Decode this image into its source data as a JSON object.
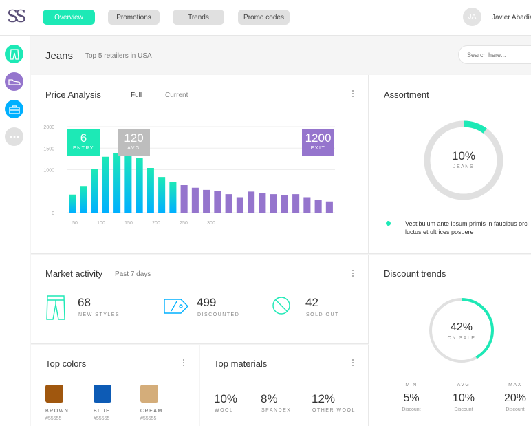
{
  "app": {
    "logo": "SS"
  },
  "nav": {
    "tabs": [
      "Overview",
      "Promotions",
      "Trends",
      "Promo codes"
    ]
  },
  "user": {
    "initials": "JA",
    "name": "Javier Abadía"
  },
  "sidebar": {
    "icons": [
      "pants-icon",
      "shoe-icon",
      "bag-icon",
      "more-icon"
    ]
  },
  "header": {
    "title": "Jeans",
    "subtitle": "Top 5 retailers in USA",
    "search_placeholder": "Search here..."
  },
  "price_analysis": {
    "title": "Price Analysis",
    "tabs": [
      "Full",
      "Current"
    ],
    "entry": {
      "value": "6",
      "label": "ENTRY"
    },
    "avg": {
      "value": "120",
      "label": "AVG"
    },
    "exit": {
      "value": "1200",
      "label": "EXIT"
    }
  },
  "chart_data": {
    "type": "bar",
    "yticks": [
      "2000",
      "1500",
      "1000",
      "0"
    ],
    "xticks": [
      "50",
      "100",
      "150",
      "200",
      "250",
      "300",
      "..."
    ],
    "ylim": [
      0,
      2000
    ],
    "values": [
      420,
      620,
      1010,
      1300,
      1380,
      1470,
      1280,
      1040,
      830,
      720,
      640,
      580,
      530,
      510,
      430,
      360,
      490,
      450,
      430,
      410,
      430,
      360,
      300,
      260
    ],
    "colors": {
      "green": "#1de9b6",
      "blue": "#00b0ff",
      "purple": "#9575cd"
    }
  },
  "assortment": {
    "title": "Assortment",
    "percent": "10%",
    "label": "JEANS",
    "fraction": 0.1,
    "legend_text_1": "Vestibulum ante ipsum primis in faucibus orci",
    "legend_text_2": "luctus et ultrices posuere"
  },
  "market": {
    "title": "Market activity",
    "subtitle": "Past 7 days",
    "stats": [
      {
        "value": "68",
        "label": "NEW STYLES"
      },
      {
        "value": "499",
        "label": "DISCOUNTED"
      },
      {
        "value": "42",
        "label": "SOLD OUT"
      }
    ]
  },
  "discount": {
    "title": "Discount trends",
    "percent": "42%",
    "label": "ON SALE",
    "fraction": 0.42,
    "items": [
      {
        "label": "MIN",
        "value": "5%",
        "sub": "Discount"
      },
      {
        "label": "AVG",
        "value": "10%",
        "sub": "Discount"
      },
      {
        "label": "MAX",
        "value": "20%",
        "sub": "Discount"
      }
    ]
  },
  "colors": {
    "title": "Top colors",
    "items": [
      {
        "name": "BROWN",
        "code": "#55555",
        "hex": "#a0570e"
      },
      {
        "name": "BLUE",
        "code": "#55555",
        "hex": "#0d5bb5"
      },
      {
        "name": "CREAM",
        "code": "#55555",
        "hex": "#d4ad7a"
      }
    ]
  },
  "materials": {
    "title": "Top materials",
    "items": [
      {
        "value": "10%",
        "label": "WOOL"
      },
      {
        "value": "8%",
        "label": "SPANDEX"
      },
      {
        "value": "12%",
        "label": "OTHER WOOL"
      }
    ]
  },
  "accent": {
    "green": "#1de9b6",
    "purple": "#9575cd",
    "grey": "#bdbdbd"
  }
}
